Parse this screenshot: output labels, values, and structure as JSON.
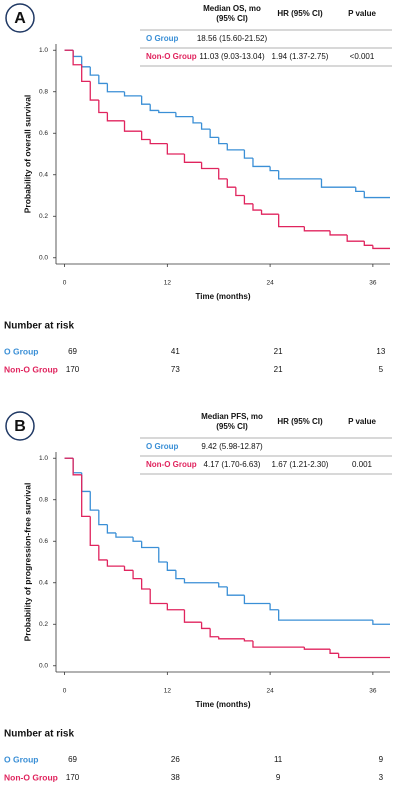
{
  "chart_data": [
    {
      "type": "step",
      "label": "A",
      "y_label": "Probability of overall survival",
      "x_label": "Time (months)",
      "xlim": [
        -1,
        38
      ],
      "xticks": [
        0,
        12,
        24,
        36
      ],
      "ylim": [
        -0.03,
        1.03
      ],
      "yticks": [
        {
          "value": 0,
          "label": "0.0"
        },
        0.2,
        0.4,
        0.6,
        0.8,
        {
          "value": 1,
          "label": "1.0"
        }
      ],
      "table": {
        "headers": [
          "Median OS, mo (95% CI)",
          "HR (95% CI)",
          "P value"
        ],
        "rows": [
          [
            "18.56 (15.60-21.52)"
          ],
          [
            "11.03 (9.03-13.04)",
            "1.94 (1.37-2.75)",
            "<0.001"
          ]
        ]
      },
      "at_risk_title": "Number at risk",
      "series": [
        {
          "name": "O Group",
          "color": "#3a8fd6",
          "x": [
            0,
            1,
            2,
            3,
            4,
            5,
            7,
            9,
            10,
            11,
            13,
            15,
            16,
            17,
            18,
            19,
            21,
            22,
            24,
            25,
            30,
            34,
            35,
            38
          ],
          "values": [
            1.0,
            0.97,
            0.92,
            0.88,
            0.84,
            0.8,
            0.78,
            0.74,
            0.71,
            0.7,
            0.68,
            0.65,
            0.62,
            0.58,
            0.55,
            0.52,
            0.48,
            0.44,
            0.42,
            0.38,
            0.34,
            0.32,
            0.29,
            0.29
          ],
          "at_risk": [
            69,
            41,
            21,
            13
          ]
        },
        {
          "name": "Non-O Group",
          "color": "#e0245e",
          "x": [
            0,
            1,
            2,
            3,
            4,
            5,
            7,
            9,
            10,
            12,
            14,
            16,
            18,
            19,
            20,
            21,
            22,
            23,
            25,
            28,
            31,
            33,
            35,
            36,
            38
          ],
          "values": [
            1.0,
            0.93,
            0.85,
            0.76,
            0.7,
            0.66,
            0.61,
            0.57,
            0.55,
            0.5,
            0.46,
            0.43,
            0.38,
            0.34,
            0.3,
            0.26,
            0.23,
            0.21,
            0.15,
            0.13,
            0.11,
            0.08,
            0.06,
            0.045,
            0.045
          ],
          "at_risk": [
            170,
            73,
            21,
            5
          ]
        }
      ]
    },
    {
      "type": "step",
      "label": "B",
      "y_label": "Probability of progression-free survival",
      "x_label": "Time (months)",
      "xlim": [
        -1,
        38
      ],
      "xticks": [
        0,
        12,
        24,
        36
      ],
      "ylim": [
        -0.03,
        1.03
      ],
      "yticks": [
        {
          "value": 0,
          "label": "0.0"
        },
        0.2,
        0.4,
        0.6,
        0.8,
        {
          "value": 1,
          "label": "1.0"
        }
      ],
      "table": {
        "headers": [
          "Median PFS, mo (95% CI)",
          "HR (95% CI)",
          "P value"
        ],
        "rows": [
          [
            "9.42 (5.98-12.87)"
          ],
          [
            "4.17 (1.70-6.63)",
            "1.67 (1.21-2.30)",
            "0.001"
          ]
        ]
      },
      "at_risk_title": "Number at risk",
      "series": [
        {
          "name": "O Group",
          "color": "#3a8fd6",
          "x": [
            0,
            1,
            2,
            3,
            4,
            5,
            6,
            8,
            9,
            11,
            12,
            13,
            14,
            18,
            19,
            21,
            24,
            25,
            36,
            38
          ],
          "values": [
            1.0,
            0.93,
            0.84,
            0.75,
            0.68,
            0.64,
            0.62,
            0.6,
            0.57,
            0.5,
            0.46,
            0.42,
            0.4,
            0.38,
            0.34,
            0.3,
            0.27,
            0.22,
            0.2,
            0.2
          ],
          "at_risk": [
            69,
            26,
            11,
            9
          ]
        },
        {
          "name": "Non-O Group",
          "color": "#e0245e",
          "x": [
            0,
            1,
            2,
            3,
            4,
            5,
            7,
            8,
            9,
            10,
            12,
            14,
            16,
            17,
            18,
            21,
            22,
            28,
            31,
            32,
            38
          ],
          "values": [
            1.0,
            0.92,
            0.72,
            0.58,
            0.51,
            0.48,
            0.46,
            0.42,
            0.37,
            0.3,
            0.27,
            0.21,
            0.18,
            0.14,
            0.13,
            0.12,
            0.09,
            0.08,
            0.06,
            0.04,
            0.04
          ],
          "at_risk": [
            170,
            38,
            9,
            3
          ]
        }
      ]
    }
  ]
}
